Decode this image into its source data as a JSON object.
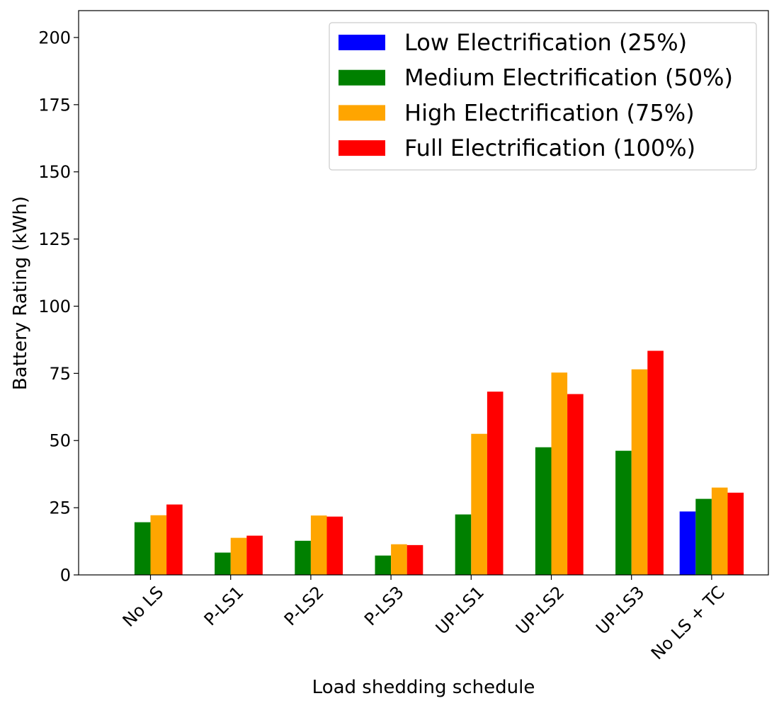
{
  "chart_data": {
    "type": "bar",
    "title": "",
    "xlabel": "Load shedding schedule",
    "ylabel": "Battery Rating (kWh)",
    "ylim": [
      0,
      210
    ],
    "yticks": [
      0,
      25,
      50,
      75,
      100,
      125,
      150,
      175,
      200
    ],
    "categories": [
      "No LS",
      "P-LS1",
      "P-LS2",
      "P-LS3",
      "UP-LS1",
      "UP-LS2",
      "UP-LS3",
      "No LS + TC"
    ],
    "series": [
      {
        "name": "Low Electrification (25%)",
        "color": "#0000ff",
        "values": [
          0,
          0,
          0,
          0,
          0,
          0,
          0,
          23.6
        ]
      },
      {
        "name": "Medium Electrification (50%)",
        "color": "#008000",
        "values": [
          19.6,
          8.3,
          12.7,
          7.2,
          22.5,
          47.5,
          46.2,
          28.3
        ]
      },
      {
        "name": "High Electrification (75%)",
        "color": "#ffa500",
        "values": [
          22.2,
          13.8,
          22.1,
          11.4,
          52.5,
          75.3,
          76.5,
          32.5
        ]
      },
      {
        "name": "Full Electrification (100%)",
        "color": "#ff0000",
        "values": [
          26.2,
          14.6,
          21.7,
          11.1,
          68.2,
          67.3,
          83.4,
          30.6
        ]
      }
    ],
    "legend_position": "top-right",
    "grid": false
  }
}
